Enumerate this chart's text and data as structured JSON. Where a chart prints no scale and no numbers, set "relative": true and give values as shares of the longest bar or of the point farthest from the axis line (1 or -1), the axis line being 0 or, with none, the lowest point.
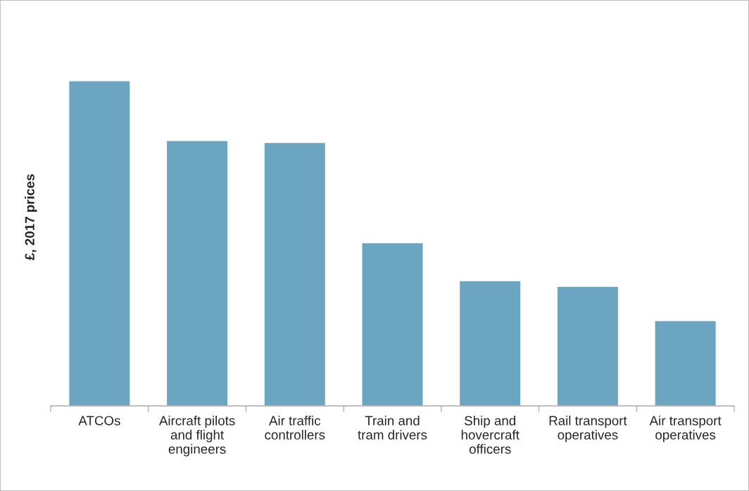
{
  "chart_data": {
    "type": "bar",
    "relative": true,
    "ylabel": "£, 2017 prices",
    "categories": [
      "ATCOs",
      "Aircraft pilots\nand flight\nengineers",
      "Air traffic\ncontrollers",
      "Train and\ntram drivers",
      "Ship and\nhovercraft\nofficers",
      "Rail transport\noperatives",
      "Air transport\noperatives"
    ],
    "values": [
      1,
      0.816,
      0.81,
      0.502,
      0.385,
      0.368,
      0.262
    ],
    "color": "#6ba5c1",
    "grid": false,
    "legend": false
  }
}
